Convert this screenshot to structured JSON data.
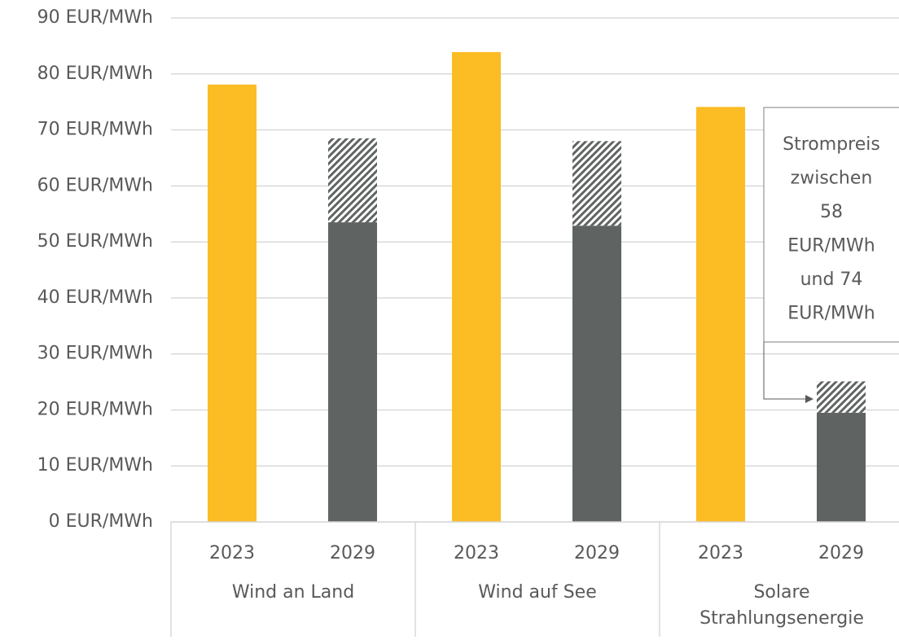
{
  "chart_data": {
    "type": "stacked_bar",
    "categories": [
      "2023",
      "2029",
      "2023",
      "2029",
      "2023",
      "2029"
    ],
    "groups": [
      [
        "Wind an Land"
      ],
      [
        "Wind auf See"
      ],
      [
        "Solare",
        "Strahlungsenergie"
      ]
    ],
    "series": [
      {
        "color": "#fbbc24",
        "values": [
          78.1,
          null,
          83.9,
          null,
          74.1,
          null
        ]
      },
      {
        "color": "#5f6463",
        "values": [
          null,
          53.5,
          null,
          52.9,
          null,
          19.5
        ]
      },
      {
        "color": "#5f6463",
        "pattern": "hatch",
        "values": [
          null,
          15.0,
          null,
          15.1,
          null,
          5.6
        ]
      }
    ],
    "ylim": [
      0,
      90
    ],
    "yticks": [
      {
        "value": 0,
        "label": "0 EUR/MWh"
      },
      {
        "value": 10,
        "label": "10 EUR/MWh"
      },
      {
        "value": 20,
        "label": "20 EUR/MWh"
      },
      {
        "value": 30,
        "label": "30 EUR/MWh"
      },
      {
        "value": 40,
        "label": "40 EUR/MWh"
      },
      {
        "value": 50,
        "label": "50 EUR/MWh"
      },
      {
        "value": 60,
        "label": "60 EUR/MWh"
      },
      {
        "value": 70,
        "label": "70 EUR/MWh"
      },
      {
        "value": 80,
        "label": "80 EUR/MWh"
      },
      {
        "value": 90,
        "label": "90 EUR/MWh"
      }
    ],
    "grid": true,
    "annotation": {
      "lines": [
        "Strompreis",
        "zwischen",
        "58",
        "EUR/MWh",
        "und 74",
        "EUR/MWh"
      ]
    }
  }
}
